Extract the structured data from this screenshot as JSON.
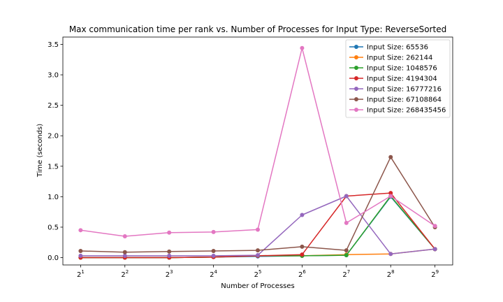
{
  "chart_data": {
    "type": "line",
    "title": "Max communication time per rank vs. Number of Processes for Input Type: ReverseSorted",
    "xlabel": "Number of Processes",
    "ylabel": "Time (seconds)",
    "x_scale": "log2",
    "x": [
      2,
      4,
      8,
      16,
      32,
      64,
      128,
      256,
      512
    ],
    "x_tick_labels": [
      {
        "base": "2",
        "exp": "1"
      },
      {
        "base": "2",
        "exp": "2"
      },
      {
        "base": "2",
        "exp": "3"
      },
      {
        "base": "2",
        "exp": "4"
      },
      {
        "base": "2",
        "exp": "5"
      },
      {
        "base": "2",
        "exp": "6"
      },
      {
        "base": "2",
        "exp": "7"
      },
      {
        "base": "2",
        "exp": "8"
      },
      {
        "base": "2",
        "exp": "9"
      }
    ],
    "ylim": [
      -0.12,
      3.62
    ],
    "y_ticks": [
      "0.0",
      "0.5",
      "1.0",
      "1.5",
      "2.0",
      "2.5",
      "3.0",
      "3.5"
    ],
    "y_tick_values": [
      0,
      0.5,
      1.0,
      1.5,
      2.0,
      2.5,
      3.0,
      3.5
    ],
    "grid": false,
    "legend_position": "top-right",
    "series": [
      {
        "name": "Input Size: 65536",
        "color": "#1f77b4",
        "values": [
          0.0,
          0.0,
          0.0,
          0.01,
          0.02,
          0.03,
          0.04,
          1.0,
          0.14
        ]
      },
      {
        "name": "Input Size: 262144",
        "color": "#ff7f0e",
        "values": [
          0.0,
          0.0,
          0.0,
          0.01,
          0.03,
          0.03,
          0.05,
          0.06,
          0.14
        ]
      },
      {
        "name": "Input Size: 1048576",
        "color": "#2ca02c",
        "values": [
          0.0,
          0.0,
          0.0,
          0.01,
          0.03,
          0.03,
          0.04,
          1.01,
          0.14
        ]
      },
      {
        "name": "Input Size: 4194304",
        "color": "#d62728",
        "values": [
          0.0,
          0.0,
          0.0,
          0.01,
          0.03,
          0.05,
          1.01,
          1.06,
          0.14
        ]
      },
      {
        "name": "Input Size: 16777216",
        "color": "#9467bd",
        "values": [
          0.03,
          0.03,
          0.03,
          0.03,
          0.04,
          0.7,
          1.01,
          0.06,
          0.14
        ]
      },
      {
        "name": "Input Size: 67108864",
        "color": "#8c564b",
        "values": [
          0.11,
          0.09,
          0.1,
          0.11,
          0.12,
          0.18,
          0.12,
          1.65,
          0.5
        ]
      },
      {
        "name": "Input Size: 268435456",
        "color": "#e377c2",
        "values": [
          0.45,
          0.35,
          0.41,
          0.42,
          0.46,
          3.44,
          0.57,
          1.01,
          0.52
        ]
      }
    ]
  }
}
